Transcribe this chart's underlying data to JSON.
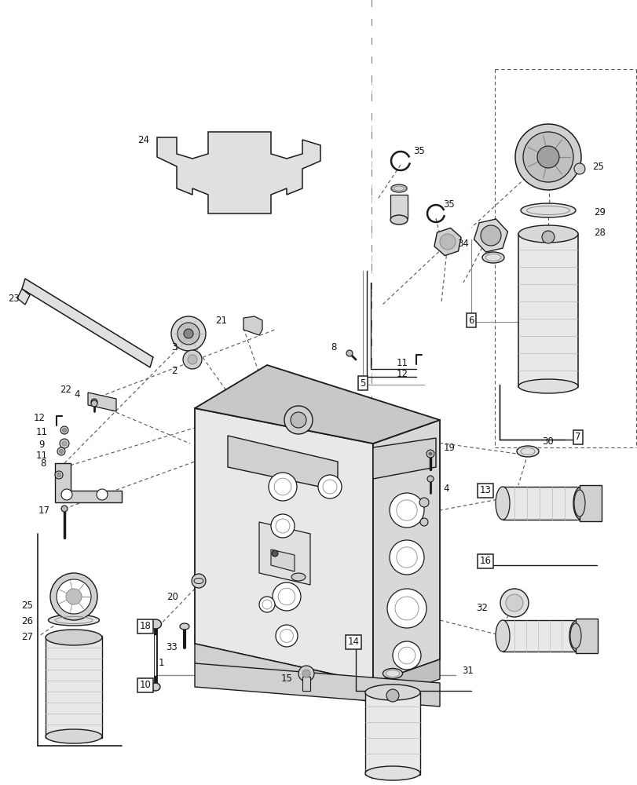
{
  "bg": "#ffffff",
  "lc": "#1a1a1a",
  "gray1": "#e8e8e8",
  "gray2": "#d0d0d0",
  "gray3": "#b8b8b8",
  "figsize": [
    8.12,
    10.0
  ],
  "dpi": 100
}
